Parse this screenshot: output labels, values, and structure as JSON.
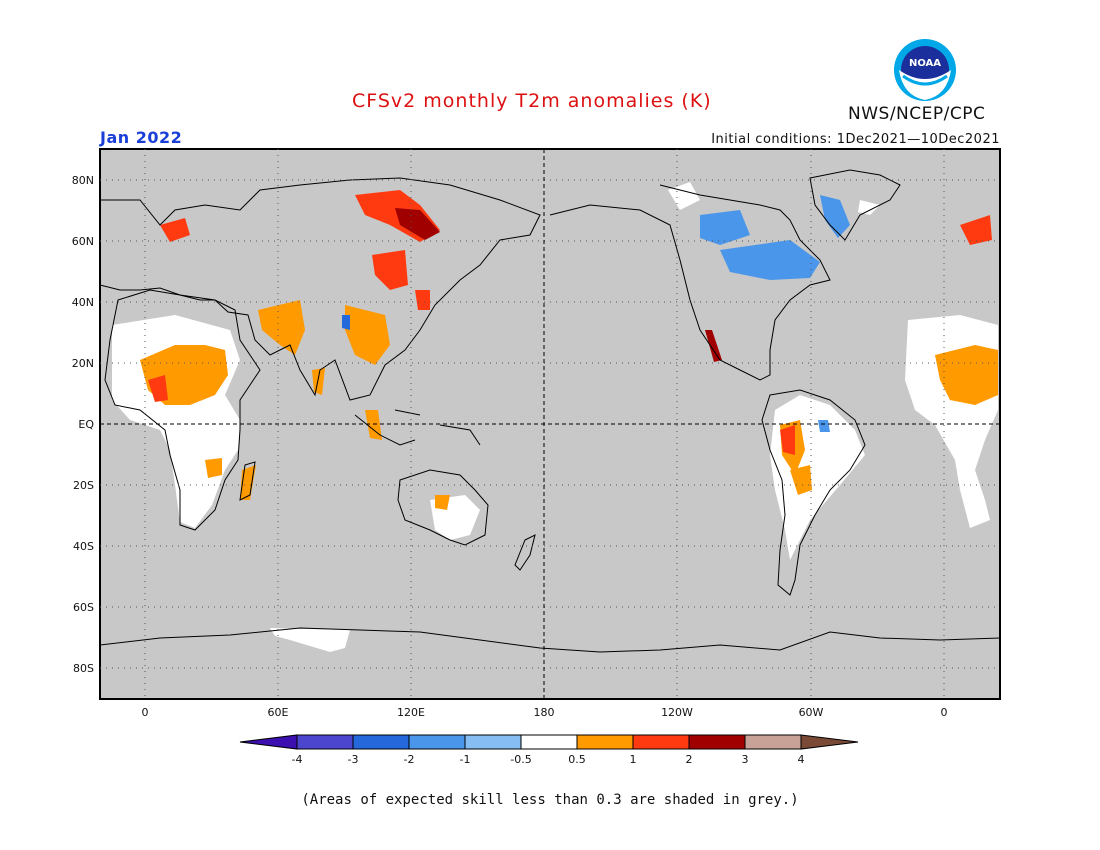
{
  "header": {
    "title": "CFSv2 monthly T2m anomalies (K)",
    "month": "Jan 2022",
    "initial_conditions": "Initial conditions: 1Dec2021—10Dec2021",
    "agency": "NWS/NCEP/CPC",
    "logo_text": "NOAA"
  },
  "map": {
    "lat_labels": [
      "80N",
      "60N",
      "40N",
      "20N",
      "EQ",
      "20S",
      "40S",
      "60S",
      "80S"
    ],
    "lon_labels": [
      "0",
      "60E",
      "120E",
      "180",
      "120W",
      "60W",
      "0"
    ],
    "background_color": "#c8c8c8"
  },
  "legend": {
    "labels": [
      "-4",
      "-3",
      "-2",
      "-1",
      "-0.5",
      "0.5",
      "1",
      "2",
      "3",
      "4"
    ],
    "colors": [
      "#3b0fb0",
      "#4c46cf",
      "#2468dc",
      "#4a96ea",
      "#86bdf3",
      "#ffffff",
      "#ff9a00",
      "#ff3a10",
      "#a00000",
      "#c8a296",
      "#7a4a36"
    ]
  },
  "footnote": "(Areas of expected skill less than 0.3 are shaded in grey.)"
}
